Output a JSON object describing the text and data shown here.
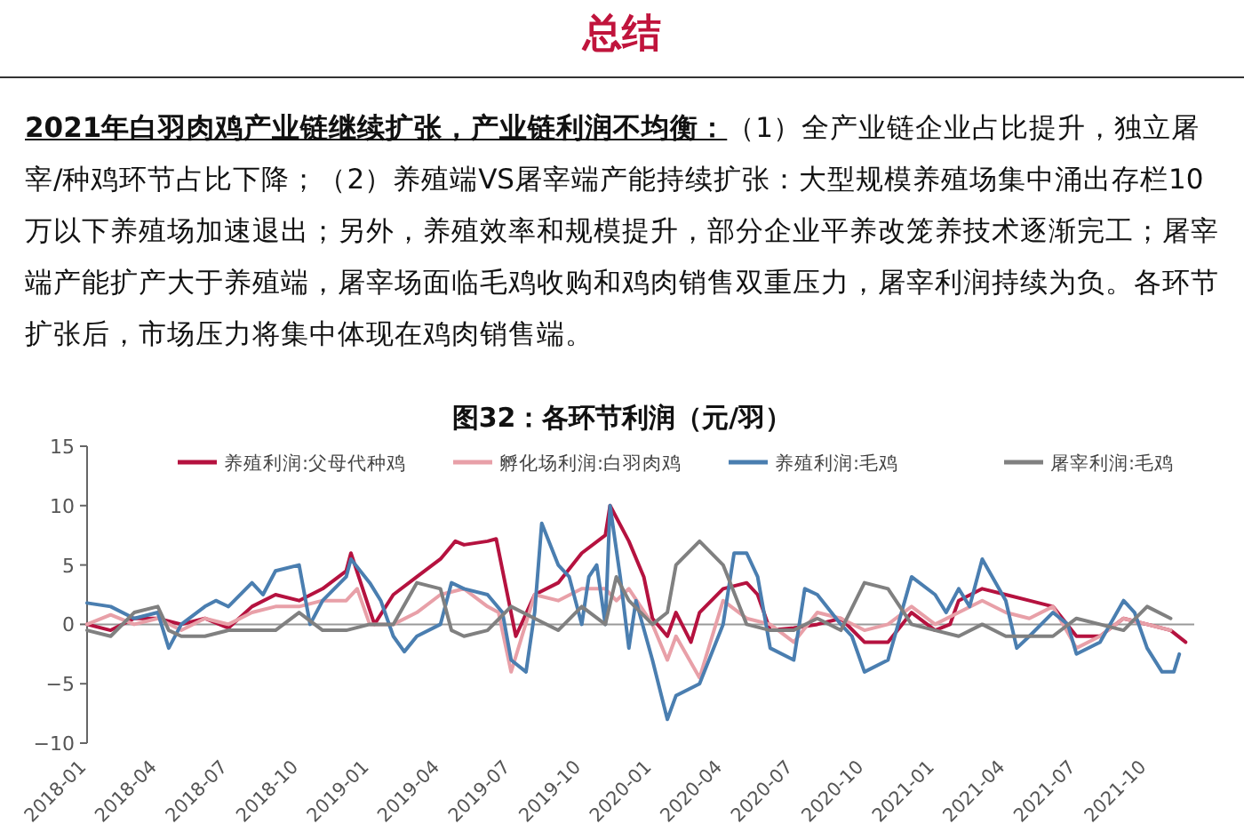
{
  "chart_data": {
    "type": "line",
    "title": "图32：各环节利润（元/羽）",
    "annotations": [
      "总结",
      "2021年白羽肉鸡产业链继续扩张，产业链利润不均衡：",
      "（1）全产业链企业占比提升，独立屠宰/种鸡环节占比下降；（2）养殖端VS屠宰端产能持续扩张：大型规模养殖场集中涌出存栏10万以下养殖场加速退出；另外，养殖效率和规模提升，部分企业平养改笼养技术逐渐完工；屠宰端产能扩产大于养殖端，屠宰场面临毛鸡收购和鸡肉销售双重压力，屠宰利润持续为负。各环节扩张后，市场压力将集中体现在鸡肉销售端。"
    ],
    "xlim": [
      "2018-01",
      "2021-12"
    ],
    "xticks": [
      "2018-01",
      "2018-04",
      "2018-07",
      "2018-10",
      "2019-01",
      "2019-04",
      "2019-07",
      "2019-10",
      "2020-01",
      "2020-04",
      "2020-07",
      "2020-10",
      "2021-01",
      "2021-04",
      "2021-07",
      "2021-10"
    ],
    "ylim": [
      -10,
      15
    ],
    "yticks": [
      -10,
      -5,
      0,
      5,
      10,
      15
    ],
    "grid": false,
    "legend": "top",
    "ref_lines": [
      {
        "axis": "y",
        "value": 0,
        "color": "#999999"
      }
    ],
    "series": [
      {
        "name": "养殖利润:父母代种鸡",
        "color": "#b5123f",
        "x": [
          "2018-01",
          "2018-02",
          "2018-03",
          "2018-04",
          "2018-05",
          "2018-06",
          "2018-07",
          "2018-08",
          "2018-09",
          "2018-10",
          "2018-11",
          "2018-12",
          "2018-12-07",
          "2019-01-07",
          "2019-02",
          "2019-03",
          "2019-04",
          "2019-04-20",
          "2019-05",
          "2019-06",
          "2019-06-12",
          "2019-07-07",
          "2019-08",
          "2019-09",
          "2019-10",
          "2019-11",
          "2019-11-07",
          "2019-12",
          "2019-12-20",
          "2020-01",
          "2020-01-20",
          "2020-02",
          "2020-02-20",
          "2020-03",
          "2020-04",
          "2020-05",
          "2020-05-15",
          "2020-06",
          "2020-07",
          "2020-08",
          "2020-09",
          "2020-10",
          "2020-11",
          "2020-12",
          "2021-01",
          "2021-01-20",
          "2021-02",
          "2021-03",
          "2021-04",
          "2021-05",
          "2021-06",
          "2021-07",
          "2021-08",
          "2021-09",
          "2021-10",
          "2021-11",
          "2021-11-20"
        ],
        "values": [
          0,
          -0.5,
          0.5,
          0.5,
          0,
          0.5,
          -0.3,
          1.5,
          2.5,
          2,
          3,
          4.5,
          6,
          0,
          2.5,
          4,
          5.5,
          7,
          6.7,
          7,
          7.2,
          -1,
          2.5,
          3.5,
          6,
          7.5,
          10,
          7,
          4,
          0.5,
          -1,
          1,
          -1.5,
          1,
          3,
          3.5,
          2.5,
          -0.5,
          -0.3,
          0,
          0.5,
          -1.5,
          -1.5,
          1,
          -0.5,
          0,
          2,
          3,
          2.5,
          2,
          1.5,
          -1,
          -1,
          0.5,
          0,
          -0.5,
          -1.5
        ]
      },
      {
        "name": "孵化场利润:白羽肉鸡",
        "color": "#e8a0a8",
        "x": [
          "2018-01",
          "2018-02",
          "2018-03",
          "2018-04",
          "2018-05",
          "2018-06",
          "2018-07",
          "2018-08",
          "2018-09",
          "2018-10",
          "2018-11",
          "2018-12",
          "2018-12-15",
          "2019-01",
          "2019-02",
          "2019-03",
          "2019-04",
          "2019-05",
          "2019-06",
          "2019-06-15",
          "2019-07",
          "2019-08",
          "2019-09",
          "2019-10",
          "2019-11",
          "2019-11-15",
          "2019-12",
          "2020-01",
          "2020-01-20",
          "2020-02",
          "2020-03",
          "2020-04",
          "2020-05",
          "2020-06",
          "2020-07",
          "2020-08",
          "2020-09",
          "2020-10",
          "2020-11",
          "2020-12",
          "2021-01",
          "2021-02",
          "2021-03",
          "2021-04",
          "2021-05",
          "2021-06",
          "2021-07",
          "2021-08",
          "2021-09",
          "2021-10",
          "2021-11"
        ],
        "values": [
          0,
          0.8,
          0,
          0.5,
          -0.5,
          0.5,
          0,
          1,
          1.5,
          1.5,
          2,
          2,
          3,
          0,
          0,
          1,
          2.5,
          3,
          1.5,
          1,
          -4,
          2.5,
          2,
          3,
          3,
          2,
          3,
          0,
          -3,
          -1,
          -4.5,
          2,
          0.5,
          0,
          -1.5,
          1,
          0.5,
          -0.5,
          0,
          1.5,
          0,
          1,
          2,
          1,
          0.5,
          1.5,
          -2,
          -1,
          0.5,
          0,
          -0.5
        ]
      },
      {
        "name": "养殖利润:毛鸡",
        "color": "#4a7eb0",
        "x": [
          "2018-01",
          "2018-02",
          "2018-03",
          "2018-04",
          "2018-04-15",
          "2018-05",
          "2018-06",
          "2018-06-15",
          "2018-07",
          "2018-08",
          "2018-08-15",
          "2018-09",
          "2018-10",
          "2018-10-15",
          "2018-11",
          "2018-12",
          "2018-12-07",
          "2019-01",
          "2019-01-15",
          "2019-02",
          "2019-02-15",
          "2019-03",
          "2019-04",
          "2019-04-15",
          "2019-05",
          "2019-06",
          "2019-06-20",
          "2019-07",
          "2019-07-20",
          "2019-08",
          "2019-08-10",
          "2019-09",
          "2019-09-15",
          "2019-10",
          "2019-10-10",
          "2019-10-20",
          "2019-11",
          "2019-11-07",
          "2019-11-20",
          "2019-12",
          "2019-12-10",
          "2020-01",
          "2020-01-20",
          "2020-02",
          "2020-03",
          "2020-04",
          "2020-04-15",
          "2020-05",
          "2020-05-15",
          "2020-06",
          "2020-07",
          "2020-07-15",
          "2020-08",
          "2020-09",
          "2020-09-15",
          "2020-10",
          "2020-11",
          "2020-12",
          "2021-01",
          "2021-01-15",
          "2021-02",
          "2021-02-15",
          "2021-03",
          "2021-04",
          "2021-04-15",
          "2021-05",
          "2021-06",
          "2021-06-20",
          "2021-07",
          "2021-08",
          "2021-09",
          "2021-09-15",
          "2021-10",
          "2021-10-20",
          "2021-11-05",
          "2021-11-12"
        ],
        "values": [
          1.8,
          1.5,
          0.5,
          1,
          -2,
          0,
          1.5,
          2,
          1.5,
          3.5,
          2.5,
          4.5,
          5,
          0,
          2,
          4,
          5.5,
          3.5,
          2,
          -1,
          -2.3,
          -1,
          0,
          3.5,
          3,
          2.5,
          1,
          -3,
          -4,
          1,
          8.5,
          5,
          4,
          0,
          4,
          5,
          0,
          10,
          4,
          -2,
          2,
          -3,
          -8,
          -6,
          -5,
          0,
          6,
          6,
          4,
          -2,
          -3,
          3,
          2.5,
          0,
          -1,
          -4,
          -3,
          4,
          2.5,
          1,
          3,
          1.5,
          5.5,
          2,
          -2,
          -1,
          1,
          0,
          -2.5,
          -1.5,
          2,
          1,
          -2,
          -4,
          -4,
          -2.5
        ]
      },
      {
        "name": "屠宰利润:毛鸡",
        "color": "#808080",
        "x": [
          "2018-01",
          "2018-02",
          "2018-03",
          "2018-04",
          "2018-04-15",
          "2018-05",
          "2018-06",
          "2018-07",
          "2018-08",
          "2018-09",
          "2018-10",
          "2018-11",
          "2018-12",
          "2019-01",
          "2019-02",
          "2019-03",
          "2019-04",
          "2019-04-15",
          "2019-05",
          "2019-06",
          "2019-07",
          "2019-08",
          "2019-09",
          "2019-10",
          "2019-11",
          "2019-11-15",
          "2019-12",
          "2020-01",
          "2020-01-20",
          "2020-02",
          "2020-03",
          "2020-04",
          "2020-05",
          "2020-06",
          "2020-07",
          "2020-08",
          "2020-09",
          "2020-10",
          "2020-11",
          "2020-12",
          "2021-01",
          "2021-02",
          "2021-03",
          "2021-04",
          "2021-05",
          "2021-06",
          "2021-07",
          "2021-08",
          "2021-09",
          "2021-10",
          "2021-11"
        ],
        "values": [
          -0.5,
          -1,
          1,
          1.5,
          -0.5,
          -1,
          -1,
          -0.5,
          -0.5,
          -0.5,
          1,
          -0.5,
          -0.5,
          0,
          0,
          3.5,
          3,
          -0.5,
          -1,
          -0.5,
          1.5,
          0.5,
          -0.5,
          1.5,
          0,
          4,
          2,
          0,
          1,
          5,
          7,
          5,
          0,
          -0.5,
          -0.5,
          0.5,
          -0.5,
          3.5,
          3,
          0,
          -0.5,
          -1,
          0,
          -1,
          -1,
          -1,
          0.5,
          0,
          -0.5,
          1.5,
          0.5
        ]
      }
    ]
  }
}
